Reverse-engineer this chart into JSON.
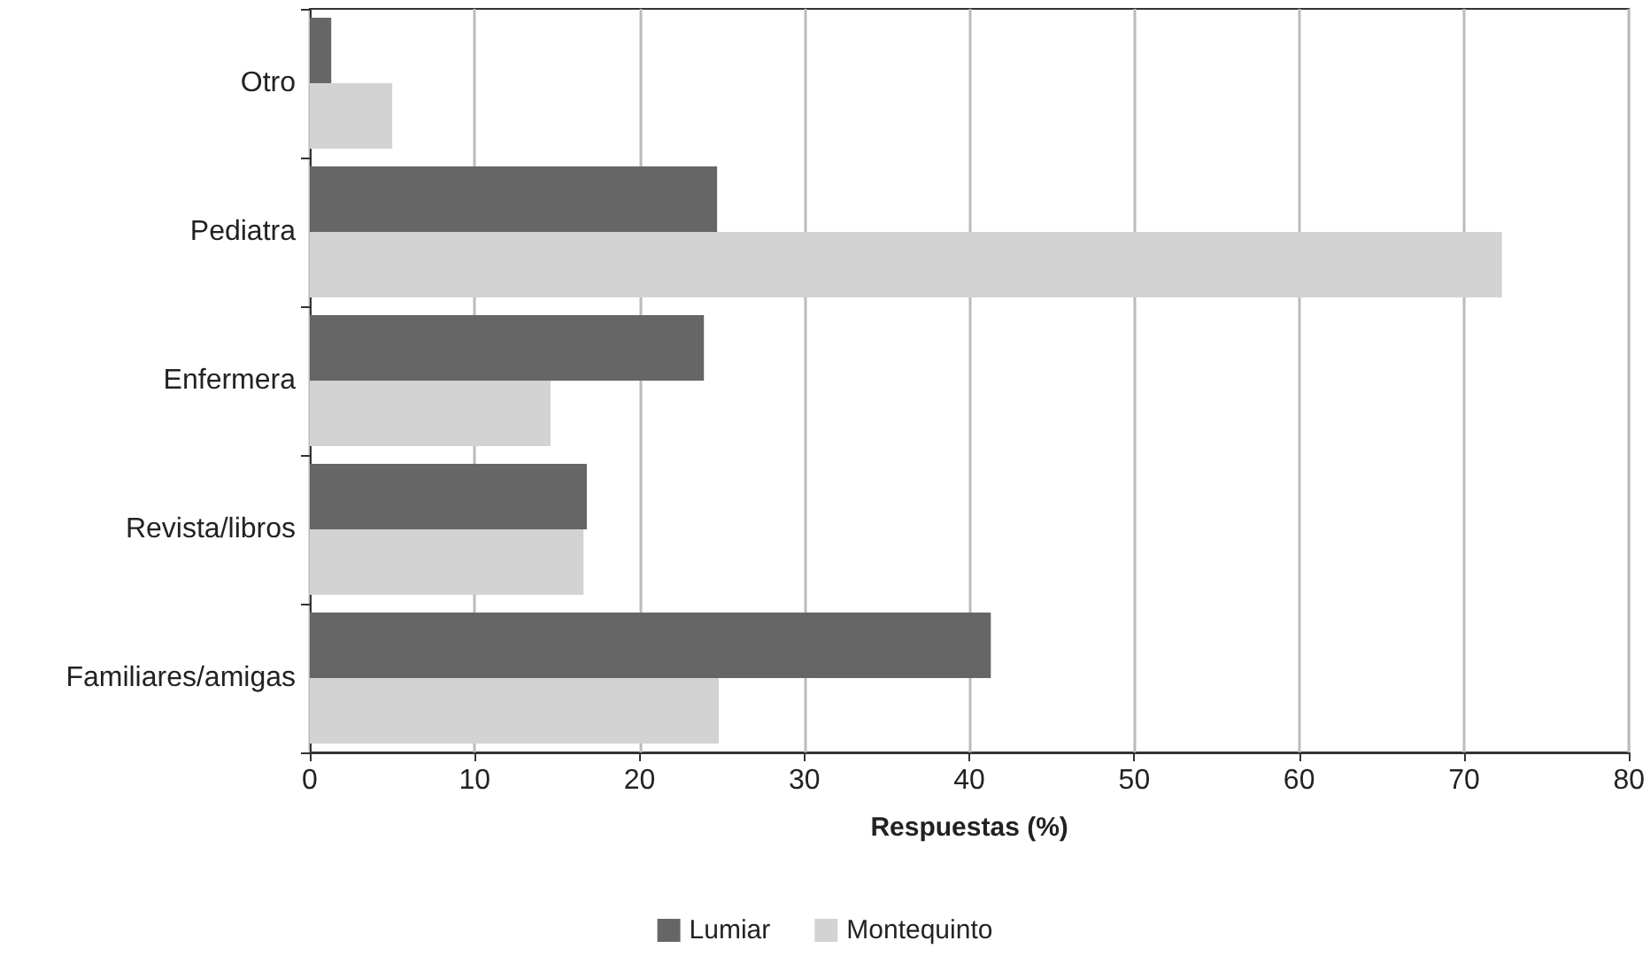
{
  "chart_data": {
    "type": "bar",
    "orientation": "horizontal",
    "xlabel": "Respuestas (%)",
    "categories": [
      "Otro",
      "Pediatra",
      "Enfermera",
      "Revista/libros",
      "Familiares/amigas"
    ],
    "series": [
      {
        "name": "Lumiar",
        "color": "#666666",
        "values": [
          1.3,
          24.7,
          23.9,
          16.8,
          41.3
        ]
      },
      {
        "name": "Montequinto",
        "color": "#d3d3d3",
        "values": [
          5.0,
          72.3,
          14.6,
          16.6,
          24.8
        ]
      }
    ],
    "xlim": [
      0,
      80
    ],
    "xticks": [
      0,
      10,
      20,
      30,
      40,
      50,
      60,
      70,
      80
    ],
    "grid": "x",
    "legend": "bottom"
  }
}
